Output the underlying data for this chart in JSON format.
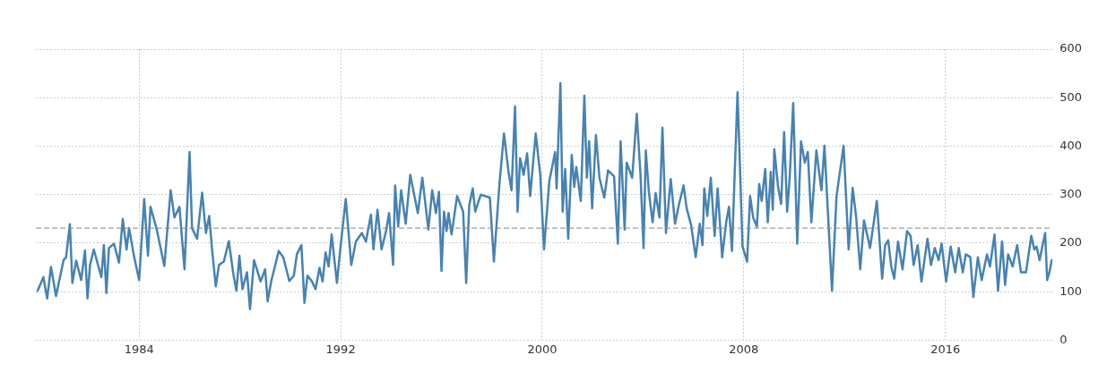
{
  "chart_data": {
    "type": "line",
    "xlim": [
      1979.9,
      2020.25
    ],
    "xticks": [
      1984,
      1992,
      2000,
      2008,
      2016
    ],
    "ylim": [
      0,
      600
    ],
    "yticks": [
      0,
      100,
      200,
      300,
      400,
      500,
      600
    ],
    "grid": true,
    "legend": false,
    "marker": "none",
    "line_style": "solid",
    "ref_lines": [
      {
        "axis": "y",
        "value": 231,
        "color": "#888888",
        "line_style": "dashed"
      }
    ],
    "series": [
      {
        "color": "#4682b4",
        "x": [
          1979.97,
          1980.2,
          1980.35,
          1980.5,
          1980.7,
          1981.0,
          1981.1,
          1981.25,
          1981.35,
          1981.5,
          1981.7,
          1981.85,
          1981.95,
          1982.05,
          1982.2,
          1982.5,
          1982.6,
          1982.7,
          1982.8,
          1983.0,
          1983.2,
          1983.35,
          1983.5,
          1983.6,
          1983.8,
          1984.0,
          1984.2,
          1984.35,
          1984.45,
          1984.6,
          1984.7,
          1985.0,
          1985.25,
          1985.4,
          1985.6,
          1985.8,
          1986.0,
          1986.1,
          1986.3,
          1986.5,
          1986.65,
          1986.78,
          1986.9,
          1987.04,
          1987.17,
          1987.36,
          1987.56,
          1987.74,
          1987.86,
          1987.98,
          1988.1,
          1988.28,
          1988.4,
          1988.56,
          1988.82,
          1989.0,
          1989.1,
          1989.24,
          1989.54,
          1989.72,
          1989.96,
          1990.14,
          1990.26,
          1990.44,
          1990.56,
          1990.68,
          1990.86,
          1991.0,
          1991.16,
          1991.28,
          1991.4,
          1991.52,
          1991.64,
          1991.85,
          1992.0,
          1992.2,
          1992.42,
          1992.6,
          1992.84,
          1993.0,
          1993.2,
          1993.3,
          1993.46,
          1993.62,
          1993.8,
          1993.92,
          1994.08,
          1994.16,
          1994.28,
          1994.4,
          1994.58,
          1994.76,
          1995.06,
          1995.24,
          1995.48,
          1995.63,
          1995.78,
          1995.9,
          1996.0,
          1996.1,
          1996.2,
          1996.28,
          1996.4,
          1996.62,
          1996.86,
          1996.98,
          1997.1,
          1997.24,
          1997.34,
          1997.56,
          1997.92,
          1998.08,
          1998.3,
          1998.48,
          1998.66,
          1998.78,
          1998.92,
          1999.02,
          1999.12,
          1999.26,
          1999.4,
          1999.52,
          1999.74,
          1999.92,
          2000.07,
          2000.28,
          2000.51,
          2000.57,
          2000.72,
          2000.81,
          2000.91,
          2001.03,
          2001.17,
          2001.27,
          2001.35,
          2001.53,
          2001.67,
          2001.77,
          2001.86,
          2001.98,
          2002.13,
          2002.27,
          2002.46,
          2002.61,
          2002.85,
          2003.0,
          2003.11,
          2003.27,
          2003.35,
          2003.57,
          2003.75,
          2003.9,
          2004.02,
          2004.11,
          2004.23,
          2004.38,
          2004.5,
          2004.65,
          2004.77,
          2004.91,
          2005.1,
          2005.27,
          2005.43,
          2005.61,
          2005.73,
          2005.91,
          2006.09,
          2006.25,
          2006.36,
          2006.43,
          2006.55,
          2006.69,
          2006.84,
          2006.96,
          2007.14,
          2007.3,
          2007.41,
          2007.53,
          2007.75,
          2007.95,
          2008.13,
          2008.25,
          2008.37,
          2008.52,
          2008.61,
          2008.71,
          2008.85,
          2008.95,
          2009.07,
          2009.15,
          2009.21,
          2009.36,
          2009.48,
          2009.6,
          2009.72,
          2009.82,
          2009.96,
          2010.12,
          2010.27,
          2010.42,
          2010.54,
          2010.68,
          2010.88,
          2011.08,
          2011.2,
          2011.5,
          2011.68,
          2011.96,
          2012.16,
          2012.32,
          2012.46,
          2012.62,
          2012.77,
          2013.01,
          2013.28,
          2013.49,
          2013.61,
          2013.73,
          2013.85,
          2013.97,
          2014.12,
          2014.3,
          2014.48,
          2014.62,
          2014.74,
          2014.9,
          2015.05,
          2015.29,
          2015.43,
          2015.58,
          2015.73,
          2015.85,
          2016.03,
          2016.21,
          2016.39,
          2016.53,
          2016.69,
          2016.81,
          2016.99,
          2017.11,
          2017.29,
          2017.44,
          2017.65,
          2017.77,
          2017.95,
          2018.09,
          2018.25,
          2018.37,
          2018.49,
          2018.67,
          2018.85,
          2019.0,
          2019.2,
          2019.41,
          2019.53,
          2019.62,
          2019.74,
          2019.86,
          2019.96,
          2020.04,
          2020.13,
          2020.22
        ],
        "values": [
          102,
          130,
          86,
          151,
          91,
          165,
          171,
          239,
          118,
          164,
          124,
          185,
          86,
          155,
          187,
          130,
          196,
          97,
          190,
          199,
          160,
          250,
          187,
          231,
          172,
          124,
          291,
          174,
          275,
          247,
          228,
          153,
          309,
          253,
          275,
          146,
          388,
          231,
          209,
          304,
          221,
          256,
          184,
          111,
          155,
          162,
          204,
          136,
          102,
          174,
          105,
          140,
          64,
          165,
          121,
          146,
          80,
          121,
          184,
          171,
          122,
          133,
          177,
          196,
          77,
          133,
          121,
          105,
          149,
          121,
          181,
          152,
          218,
          118,
          196,
          291,
          155,
          203,
          221,
          203,
          259,
          187,
          269,
          187,
          225,
          262,
          155,
          319,
          234,
          309,
          240,
          341,
          262,
          335,
          228,
          309,
          262,
          306,
          143,
          265,
          225,
          262,
          218,
          297,
          265,
          118,
          278,
          313,
          265,
          300,
          294,
          162,
          322,
          426,
          347,
          309,
          482,
          265,
          375,
          341,
          385,
          297,
          426,
          341,
          187,
          328,
          388,
          313,
          530,
          265,
          353,
          209,
          382,
          316,
          357,
          287,
          504,
          335,
          410,
          272,
          423,
          335,
          294,
          350,
          338,
          199,
          410,
          228,
          366,
          335,
          467,
          341,
          190,
          391,
          306,
          243,
          303,
          253,
          438,
          221,
          332,
          240,
          281,
          319,
          272,
          237,
          171,
          240,
          196,
          313,
          256,
          335,
          215,
          313,
          171,
          243,
          275,
          184,
          511,
          193,
          162,
          297,
          253,
          234,
          322,
          287,
          353,
          243,
          347,
          269,
          394,
          316,
          281,
          429,
          265,
          335,
          489,
          199,
          410,
          366,
          388,
          243,
          391,
          309,
          401,
          102,
          297,
          401,
          187,
          314,
          253,
          146,
          247,
          190,
          287,
          127,
          196,
          206,
          152,
          127,
          203,
          146,
          225,
          215,
          155,
          196,
          121,
          209,
          155,
          190,
          165,
          199,
          121,
          193,
          140,
          190,
          140,
          177,
          171,
          89,
          171,
          124,
          177,
          152,
          218,
          102,
          203,
          114,
          177,
          152,
          196,
          140,
          140,
          215,
          187,
          193,
          165,
          196,
          221,
          124,
          140,
          165
        ]
      }
    ]
  }
}
